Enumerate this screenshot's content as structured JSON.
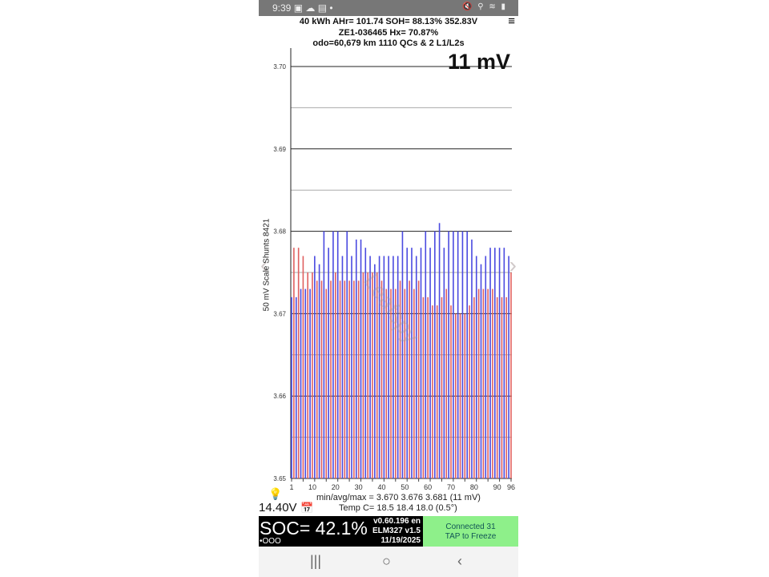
{
  "status_bar": {
    "time": "9:39",
    "left_icons": "▣ ☁ ▤ •",
    "right_icons": "🔇 ⚲ ≋ ▮"
  },
  "header": {
    "line1": "40 kWh  AHr= 101.74  SOH= 88.13%   352.83V",
    "line2": "ZE1-036465   Hx= 70.87%",
    "line3": "odo=60,679 km 1110 QCs & 2 L1/L2s",
    "menu_icon": "≡"
  },
  "spread_label": "11 mV",
  "watermark": "Leafspy",
  "chart_data": {
    "type": "bar",
    "ylabel": "50 mV Scale   Shunts 8421",
    "ylim": [
      3.65,
      3.7
    ],
    "yticks": [
      "3.65",
      "3.66",
      "3.67",
      "3.68",
      "3.69",
      "3.70"
    ],
    "xticks": [
      "1",
      "10",
      "20",
      "30",
      "40",
      "50",
      "60",
      "70",
      "80",
      "90",
      "96"
    ],
    "grid": true,
    "colors": {
      "odd": "#4a4ae0",
      "even": "#e06060"
    },
    "values": [
      3.672,
      3.678,
      3.672,
      3.678,
      3.673,
      3.677,
      3.673,
      3.675,
      3.673,
      3.675,
      3.677,
      3.674,
      3.676,
      3.674,
      3.68,
      3.673,
      3.678,
      3.674,
      3.68,
      3.675,
      3.68,
      3.674,
      3.677,
      3.674,
      3.68,
      3.674,
      3.677,
      3.674,
      3.679,
      3.674,
      3.679,
      3.675,
      3.678,
      3.675,
      3.677,
      3.675,
      3.676,
      3.675,
      3.677,
      3.674,
      3.677,
      3.673,
      3.677,
      3.673,
      3.677,
      3.673,
      3.677,
      3.674,
      3.68,
      3.673,
      3.678,
      3.674,
      3.678,
      3.673,
      3.677,
      3.674,
      3.678,
      3.672,
      3.68,
      3.672,
      3.678,
      3.671,
      3.68,
      3.671,
      3.681,
      3.672,
      3.678,
      3.673,
      3.68,
      3.671,
      3.68,
      3.67,
      3.68,
      3.67,
      3.68,
      3.67,
      3.68,
      3.671,
      3.679,
      3.672,
      3.677,
      3.673,
      3.676,
      3.673,
      3.677,
      3.673,
      3.678,
      3.673,
      3.678,
      3.672,
      3.678,
      3.672,
      3.678,
      3.672,
      3.677,
      3.675
    ]
  },
  "stats": {
    "minavgmax": "min/avg/max = 3.670 3.676 3.681  (11 mV)",
    "temp": "Temp C= 18.5  18.4  18.0  (0.5°)"
  },
  "voltage": "14.40V",
  "soc": {
    "label": "SOC= 42.1%",
    "dots": "•OOO",
    "version": "v0.60.196 en",
    "adapter": "ELM327 v1.5",
    "date": "11/19/2025"
  },
  "connection": {
    "line1": "Connected 31",
    "line2": "TAP to Freeze"
  },
  "nav": {
    "recent": "|||",
    "home": "○",
    "back": "‹"
  }
}
